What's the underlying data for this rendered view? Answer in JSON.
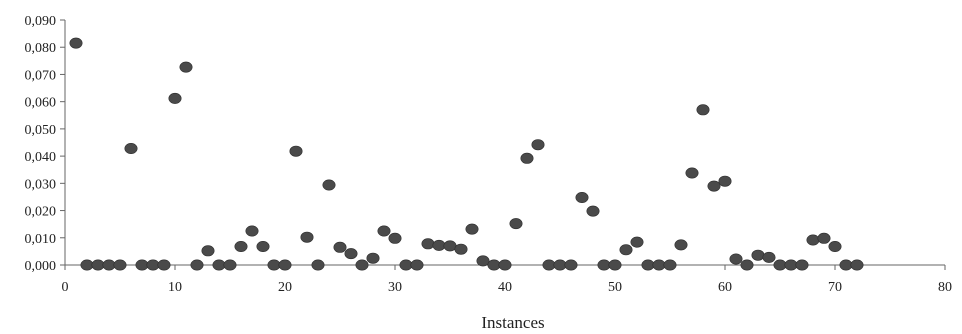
{
  "chart_data": {
    "type": "scatter",
    "title": "",
    "xlabel": "Instances",
    "ylabel": "",
    "xlim": [
      0,
      80
    ],
    "ylim": [
      0,
      0.09
    ],
    "x_ticks": [
      0,
      10,
      20,
      30,
      40,
      50,
      60,
      70,
      80
    ],
    "x_tick_labels": [
      "0",
      "10",
      "20",
      "30",
      "40",
      "50",
      "60",
      "70",
      "80"
    ],
    "y_ticks": [
      0,
      0.01,
      0.02,
      0.03,
      0.04,
      0.05,
      0.06,
      0.07,
      0.08,
      0.09
    ],
    "y_tick_labels": [
      "0,000",
      "0,010",
      "0,020",
      "0,030",
      "0,040",
      "0,050",
      "0,060",
      "0,070",
      "0,080",
      "0,090"
    ],
    "grid": false,
    "legend": "none",
    "marker_color": "#4a4a4a",
    "series": [
      {
        "points": [
          [
            1,
            0.0815
          ],
          [
            2,
            0.0
          ],
          [
            3,
            0.0
          ],
          [
            4,
            0.0
          ],
          [
            5,
            0.0
          ],
          [
            6,
            0.0428
          ],
          [
            7,
            0.0
          ],
          [
            8,
            0.0
          ],
          [
            9,
            0.0
          ],
          [
            10,
            0.0612
          ],
          [
            11,
            0.0727
          ],
          [
            12,
            0.0
          ],
          [
            13,
            0.0052
          ],
          [
            14,
            0.0
          ],
          [
            15,
            0.0
          ],
          [
            16,
            0.0068
          ],
          [
            17,
            0.0125
          ],
          [
            18,
            0.0068
          ],
          [
            19,
            0.0
          ],
          [
            20,
            0.0
          ],
          [
            21,
            0.0418
          ],
          [
            22,
            0.0102
          ],
          [
            23,
            0.0
          ],
          [
            24,
            0.0294
          ],
          [
            25,
            0.0065
          ],
          [
            26,
            0.0042
          ],
          [
            27,
            0.0
          ],
          [
            28,
            0.0025
          ],
          [
            29,
            0.0125
          ],
          [
            30,
            0.0098
          ],
          [
            31,
            0.0
          ],
          [
            32,
            0.0
          ],
          [
            33,
            0.0078
          ],
          [
            34,
            0.0072
          ],
          [
            35,
            0.007
          ],
          [
            36,
            0.0058
          ],
          [
            37,
            0.0132
          ],
          [
            38,
            0.0015
          ],
          [
            39,
            0.0
          ],
          [
            40,
            0.0
          ],
          [
            41,
            0.0152
          ],
          [
            42,
            0.0392
          ],
          [
            43,
            0.0442
          ],
          [
            44,
            0.0
          ],
          [
            45,
            0.0
          ],
          [
            46,
            0.0
          ],
          [
            47,
            0.0248
          ],
          [
            48,
            0.0198
          ],
          [
            49,
            0.0
          ],
          [
            50,
            0.0
          ],
          [
            51,
            0.0056
          ],
          [
            52,
            0.0084
          ],
          [
            53,
            0.0
          ],
          [
            54,
            0.0
          ],
          [
            55,
            0.0
          ],
          [
            56,
            0.0074
          ],
          [
            57,
            0.0338
          ],
          [
            58,
            0.057
          ],
          [
            59,
            0.029
          ],
          [
            60,
            0.0308
          ],
          [
            61,
            0.0022
          ],
          [
            62,
            0.0
          ],
          [
            63,
            0.0036
          ],
          [
            64,
            0.0028
          ],
          [
            65,
            0.0
          ],
          [
            66,
            0.0
          ],
          [
            67,
            0.0
          ],
          [
            68,
            0.0092
          ],
          [
            69,
            0.0098
          ],
          [
            70,
            0.0068
          ],
          [
            71,
            0.0
          ],
          [
            72,
            0.0
          ]
        ]
      }
    ]
  }
}
